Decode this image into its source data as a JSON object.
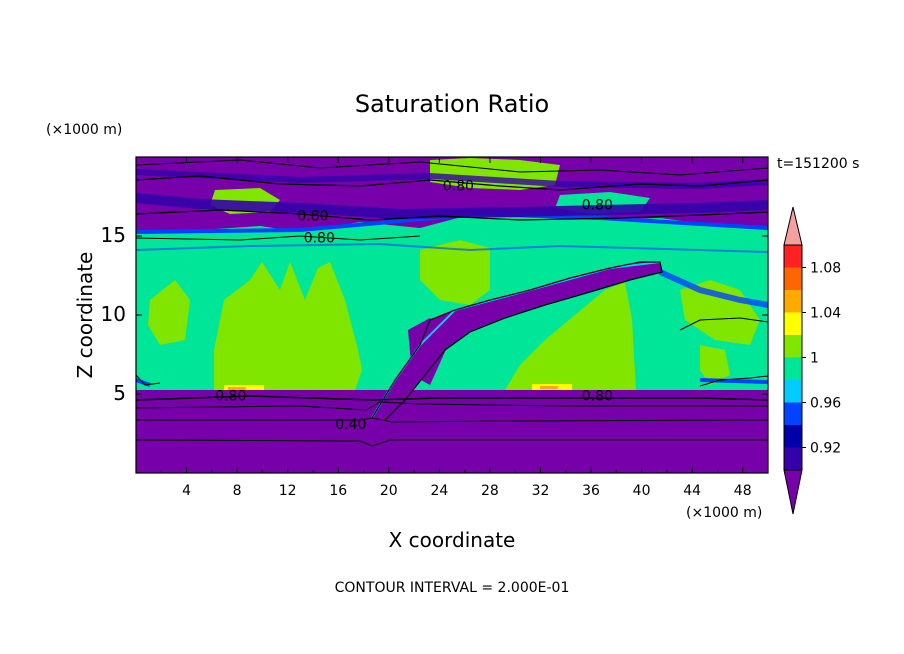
{
  "chart_data": {
    "type": "heatmap",
    "title": "Saturation Ratio",
    "xlabel": "X coordinate",
    "ylabel": "Z coordinate",
    "x_unit": "(×1000 m)",
    "y_unit": "(×1000 m)",
    "time_label": "t=151200 s",
    "footer": "CONTOUR INTERVAL = 2.000E-01",
    "xlim": [
      0,
      50
    ],
    "ylim": [
      0,
      20
    ],
    "x_ticks": [
      4,
      8,
      12,
      16,
      20,
      24,
      28,
      32,
      36,
      40,
      44,
      48
    ],
    "y_ticks": [
      5,
      10,
      15
    ],
    "colorbar": {
      "levels": [
        0.9,
        0.92,
        0.94,
        0.96,
        0.98,
        1.0,
        1.02,
        1.04,
        1.06,
        1.08,
        1.1
      ],
      "tick_labels": [
        "0.92",
        "0.96",
        "1",
        "1.04",
        "1.08"
      ],
      "tick_values": [
        0.92,
        0.96,
        1.0,
        1.04,
        1.08
      ],
      "colors": [
        "#3300aa",
        "#0000aa",
        "#0044ff",
        "#00ccff",
        "#00e699",
        "#80e600",
        "#ffff00",
        "#ffaa00",
        "#ff6600",
        "#ff2222"
      ],
      "under_color": "#7700aa",
      "over_color": "#f5a0a0"
    },
    "contour_labels": [
      {
        "text": "0.80",
        "x": 25.5,
        "y": 18.2
      },
      {
        "text": "0.80",
        "x": 14.0,
        "y": 16.3
      },
      {
        "text": "0.80",
        "x": 36.5,
        "y": 17.0
      },
      {
        "text": "0.80",
        "x": 14.5,
        "y": 14.9
      },
      {
        "text": "0.80",
        "x": 7.5,
        "y": 4.9
      },
      {
        "text": "0.80",
        "x": 36.5,
        "y": 4.9
      },
      {
        "text": "0.40",
        "x": 17.0,
        "y": 3.1
      }
    ]
  }
}
